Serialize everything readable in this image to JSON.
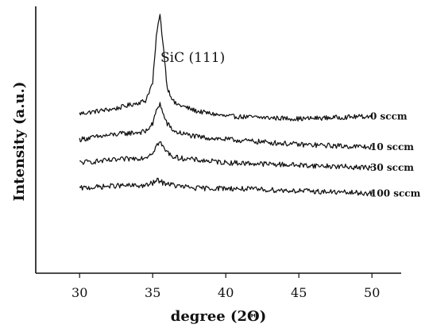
{
  "chart_data": {
    "type": "line",
    "xlabel": "degree (2Θ)",
    "ylabel": "Intensity (a.u.)",
    "xlim": [
      27,
      52
    ],
    "x_ticks": [
      30,
      35,
      40,
      45,
      50
    ],
    "annotation": {
      "text": "SiC (111)",
      "x": 35.5
    },
    "grid": false,
    "series": [
      {
        "name": "0 sccm",
        "x": [
          30.0,
          32.5,
          34.5,
          35.0,
          35.3,
          35.5,
          35.7,
          36.0,
          36.5,
          38.0,
          40.0,
          45.0,
          50.0
        ],
        "y": [
          0.62,
          0.64,
          0.67,
          0.74,
          0.95,
          1.0,
          0.9,
          0.72,
          0.66,
          0.63,
          0.61,
          0.6,
          0.61
        ]
      },
      {
        "name": "10 sccm",
        "x": [
          30.0,
          32.5,
          34.5,
          35.0,
          35.3,
          35.5,
          35.7,
          36.0,
          36.5,
          38.0,
          40.0,
          45.0,
          50.0
        ],
        "y": [
          0.52,
          0.54,
          0.55,
          0.58,
          0.64,
          0.66,
          0.62,
          0.58,
          0.55,
          0.53,
          0.52,
          0.5,
          0.49
        ]
      },
      {
        "name": "30 sccm",
        "x": [
          30.0,
          32.5,
          34.5,
          35.0,
          35.3,
          35.5,
          35.7,
          36.0,
          36.5,
          38.0,
          40.0,
          45.0,
          50.0
        ],
        "y": [
          0.43,
          0.44,
          0.45,
          0.47,
          0.5,
          0.51,
          0.49,
          0.47,
          0.45,
          0.44,
          0.43,
          0.42,
          0.41
        ]
      },
      {
        "name": "100 sccm",
        "x": [
          30.0,
          32.5,
          34.5,
          35.0,
          35.3,
          35.5,
          35.7,
          36.0,
          36.5,
          38.0,
          40.0,
          45.0,
          50.0
        ],
        "y": [
          0.33,
          0.34,
          0.34,
          0.35,
          0.36,
          0.36,
          0.35,
          0.35,
          0.34,
          0.33,
          0.33,
          0.32,
          0.31
        ]
      }
    ]
  }
}
